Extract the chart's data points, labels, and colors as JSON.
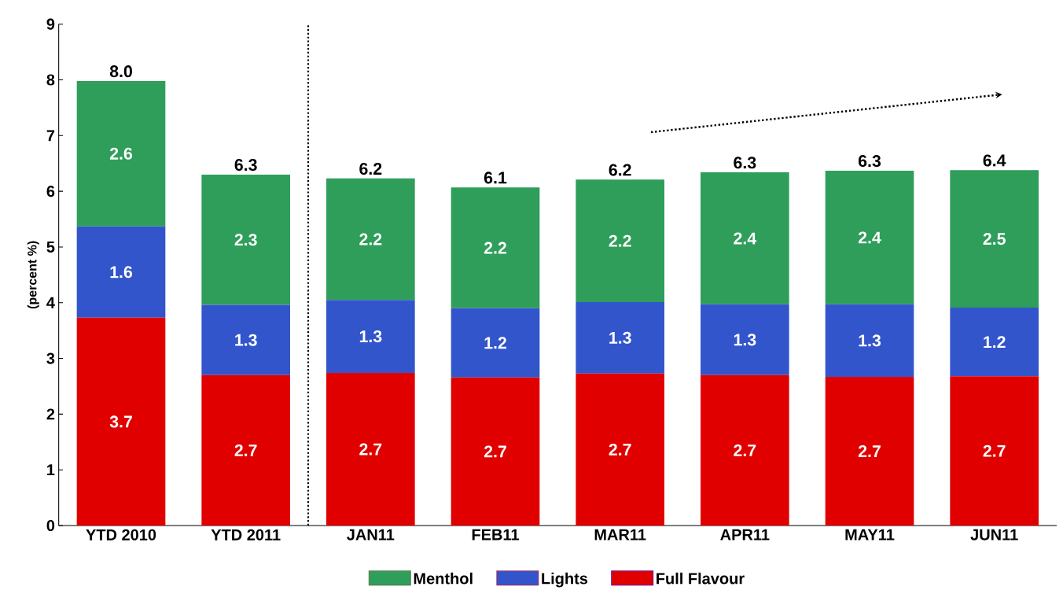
{
  "chart_data": {
    "type": "bar",
    "stacked": true,
    "ylabel": "(percent %)",
    "categories": [
      "YTD 2010",
      "YTD 2011",
      "JAN11",
      "FEB11",
      "MAR11",
      "APR11",
      "MAY11",
      "JUN11"
    ],
    "series": [
      {
        "name": "Full Flavour",
        "color": "#e00000",
        "values": [
          3.73,
          2.7,
          2.74,
          2.66,
          2.73,
          2.7,
          2.67,
          2.68
        ],
        "value_labels": [
          "3.7",
          "2.7",
          "2.7",
          "2.7",
          "2.7",
          "2.7",
          "2.7",
          "2.7"
        ]
      },
      {
        "name": "Lights",
        "color": "#3355cc",
        "values": [
          1.64,
          1.26,
          1.31,
          1.24,
          1.28,
          1.27,
          1.3,
          1.23
        ],
        "value_labels": [
          "1.6",
          "1.3",
          "1.3",
          "1.2",
          "1.3",
          "1.3",
          "1.3",
          "1.2"
        ]
      },
      {
        "name": "Menthol",
        "color": "#2e9e5a",
        "values": [
          2.61,
          2.34,
          2.18,
          2.17,
          2.2,
          2.37,
          2.4,
          2.47
        ],
        "value_labels": [
          "2.6",
          "2.3",
          "2.2",
          "2.2",
          "2.2",
          "2.4",
          "2.4",
          "2.5"
        ]
      }
    ],
    "totals": [
      "8.0",
      "6.3",
      "6.2",
      "6.1",
      "6.2",
      "6.3",
      "6.3",
      "6.4"
    ],
    "ylim": [
      0,
      9
    ],
    "yticks": [
      0,
      1,
      2,
      3,
      4,
      5,
      6,
      7,
      8,
      9
    ],
    "legend": "bottom",
    "grid": false
  }
}
